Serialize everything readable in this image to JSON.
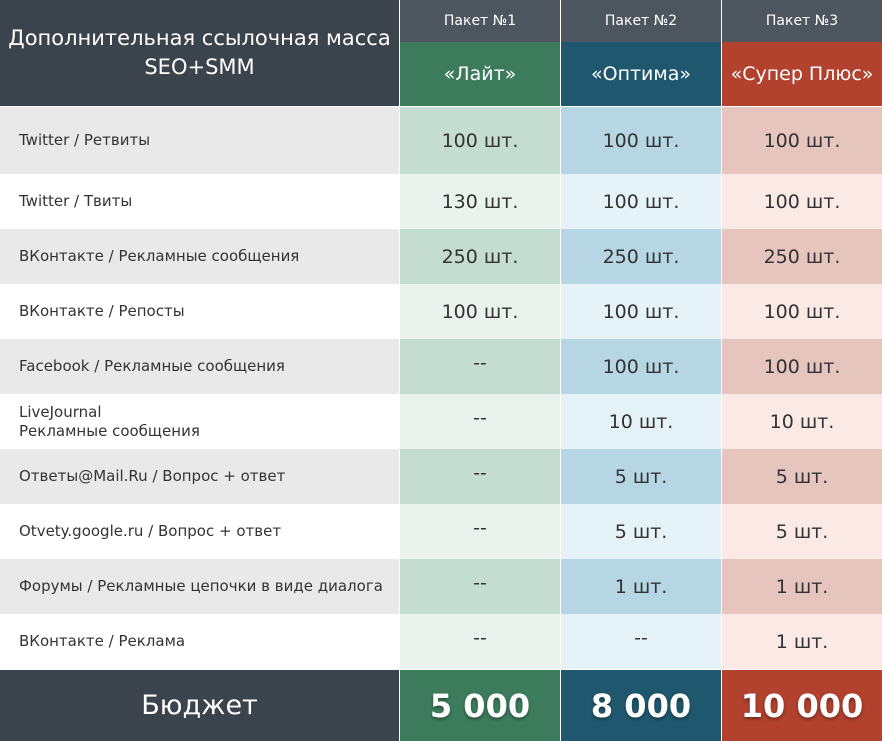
{
  "header": {
    "title_line1": "Дополнительная ссылочная масса",
    "title_line2": "SEO+SMM",
    "packages": [
      {
        "label": "Пакет №1",
        "name": "«Лайт»"
      },
      {
        "label": "Пакет №2",
        "name": "«Оптима»"
      },
      {
        "label": "Пакет №3",
        "name": "«Супер Плюс»"
      }
    ]
  },
  "rows": [
    {
      "line1": "Twitter / Ретвиты",
      "line2": "",
      "v1": "100 шт.",
      "v2": "100 шт.",
      "v3": "100 шт."
    },
    {
      "line1": "Twitter / Твиты",
      "line2": "",
      "v1": "130 шт.",
      "v2": "100 шт.",
      "v3": "100 шт."
    },
    {
      "line1": "ВКонтакте / Рекламные сообщения",
      "line2": "",
      "v1": "250 шт.",
      "v2": "250 шт.",
      "v3": "250 шт."
    },
    {
      "line1": "ВКонтакте / Репосты",
      "line2": "",
      "v1": "100 шт.",
      "v2": "100 шт.",
      "v3": "100 шт."
    },
    {
      "line1": "Facebook / Рекламные сообщения",
      "line2": "",
      "v1": "--",
      "v2": "100 шт.",
      "v3": "100 шт."
    },
    {
      "line1": "LiveJournal",
      "line2": "Рекламные сообщения",
      "v1": "--",
      "v2": "10 шт.",
      "v3": "10 шт."
    },
    {
      "line1": "Ответы@Mail.Ru / Вопрос + ответ",
      "line2": "",
      "v1": "--",
      "v2": "5 шт.",
      "v3": "5 шт."
    },
    {
      "line1": "Otvety.google.ru / Вопрос + ответ",
      "line2": "",
      "v1": "--",
      "v2": "5 шт.",
      "v3": "5 шт."
    },
    {
      "line1": "Форумы / Рекламные цепочки в виде диалога",
      "line2": "",
      "v1": "--",
      "v2": "1 шт.",
      "v3": "1 шт."
    },
    {
      "line1": "ВКонтакте / Реклама",
      "line2": "",
      "v1": "--",
      "v2": "--",
      "v3": "1 шт."
    }
  ],
  "footer": {
    "label": "Бюджет",
    "values": [
      "5 000",
      "8 000",
      "10 000"
    ]
  },
  "colors": {
    "header_dark": "#3b434d",
    "green": "#3c7c5d",
    "blue": "#1f586e",
    "red": "#b2412e"
  }
}
